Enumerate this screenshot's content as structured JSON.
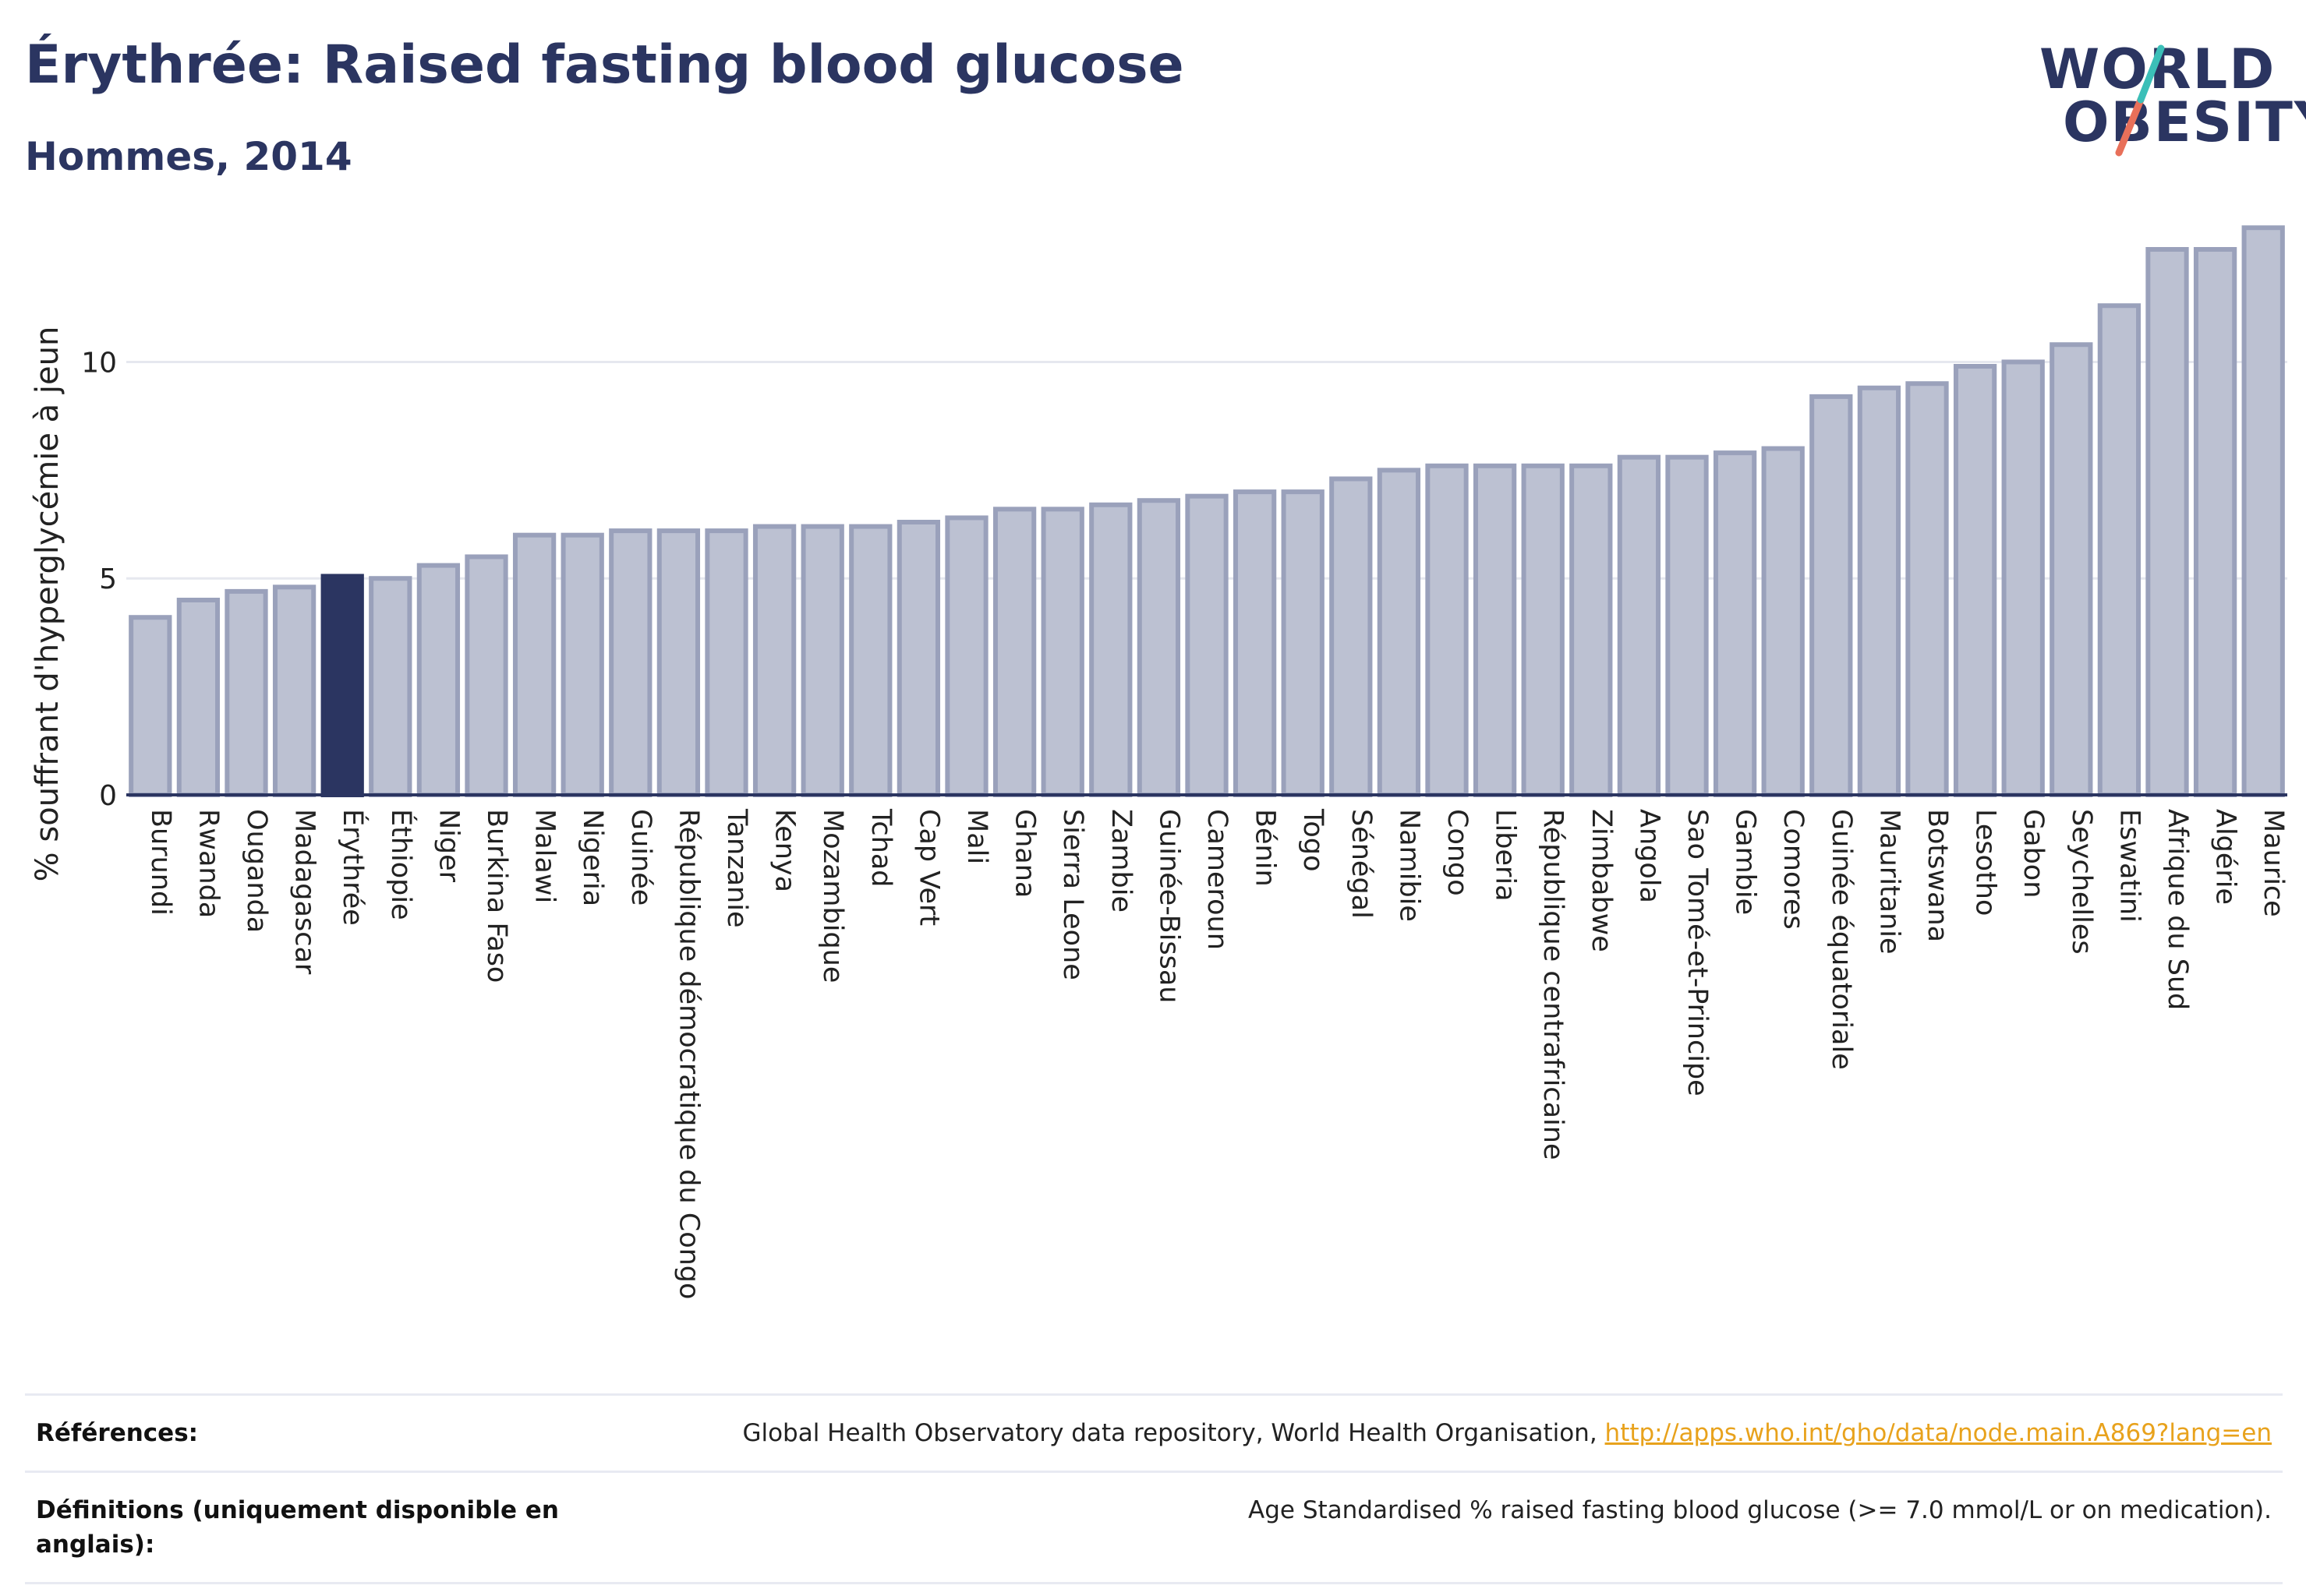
{
  "header": {
    "title": "Érythrée: Raised fasting blood glucose",
    "subtitle": "Hommes, 2014"
  },
  "logo": {
    "line1": "WORLD",
    "line2": "OBESITY",
    "colors": {
      "text": "#2b3561",
      "teal": "#3bbfb8",
      "coral": "#e8705a"
    }
  },
  "colors": {
    "bar": "#bcc1d2",
    "bar_stroke": "#9aa1bb",
    "highlight": "#2b3561",
    "grid": "#e6e8ef",
    "axis": "#2b3561"
  },
  "chart_data": {
    "type": "bar",
    "title": "Érythrée: Raised fasting blood glucose",
    "subtitle": "Hommes, 2014",
    "ylabel": "% souffrant d'hyperglycémie à jeun",
    "xlabel": "",
    "ylim": [
      0,
      13.5
    ],
    "yticks": [
      0,
      5,
      10
    ],
    "grid": true,
    "highlight": "Érythrée",
    "categories": [
      "Burundi",
      "Rwanda",
      "Ouganda",
      "Madagascar",
      "Érythrée",
      "Éthiopie",
      "Niger",
      "Burkina Faso",
      "Malawi",
      "Nigeria",
      "Guinée",
      "République démocratique du Congo",
      "Tanzanie",
      "Kenya",
      "Mozambique",
      "Tchad",
      "Cap Vert",
      "Mali",
      "Ghana",
      "Sierra Leone",
      "Zambie",
      "Guinée-Bissau",
      "Cameroun",
      "Bénin",
      "Togo",
      "Sénégal",
      "Namibie",
      "Congo",
      "Liberia",
      "République centrafricaine",
      "Zimbabwe",
      "Angola",
      "Sao Tomé-et-Principe",
      "Gambie",
      "Comores",
      "Guinée équatoriale",
      "Mauritanie",
      "Botswana",
      "Lesotho",
      "Gabon",
      "Seychelles",
      "Eswatini",
      "Afrique du Sud",
      "Algérie",
      "Maurice"
    ],
    "values": [
      4.1,
      4.5,
      4.7,
      4.8,
      5.05,
      5.0,
      5.3,
      5.5,
      6.0,
      6.0,
      6.1,
      6.1,
      6.1,
      6.2,
      6.2,
      6.2,
      6.3,
      6.4,
      6.6,
      6.6,
      6.7,
      6.8,
      6.9,
      7.0,
      7.0,
      7.3,
      7.5,
      7.6,
      7.6,
      7.6,
      7.6,
      7.8,
      7.8,
      7.9,
      8.0,
      9.2,
      9.4,
      9.5,
      9.9,
      10.0,
      10.4,
      11.3,
      12.6,
      12.6,
      13.1
    ]
  },
  "references": {
    "label": "Références:",
    "text": "Global Health Observatory data repository, World Health Organisation, ",
    "link": "http://apps.who.int/gho/data/node.main.A869?lang=en"
  },
  "definitions": {
    "label": "Définitions (uniquement disponible en anglais):",
    "text": "Age Standardised % raised fasting blood glucose (>= 7.0 mmol/L or on medication)."
  }
}
